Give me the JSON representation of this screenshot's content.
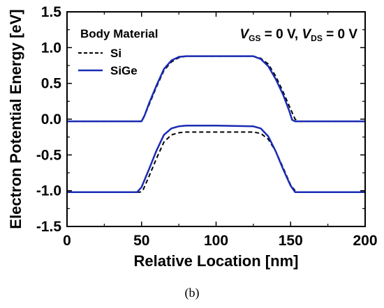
{
  "chart_data": {
    "type": "line",
    "xlabel": "Relative Location [nm]",
    "ylabel": "Electron Potential Energy [eV]",
    "xlim": [
      0,
      200
    ],
    "ylim": [
      -1.5,
      1.5
    ],
    "xticks": [
      "0",
      "50",
      "100",
      "150",
      "200"
    ],
    "yticks": [
      "-1.5",
      "-1.0",
      "-0.5",
      "0.0",
      "0.5",
      "1.0",
      "1.5"
    ],
    "grid": false,
    "legend": {
      "title": "Body Material",
      "placement": "top-left",
      "entries": [
        "Si",
        "SiGe"
      ]
    },
    "annotation": {
      "v1": "V",
      "s1": "GS",
      "mid": " = 0 V, ",
      "v2": "V",
      "s2": "DS",
      "end": " = 0 V"
    },
    "series": [
      {
        "name": "Si",
        "color": "#000000",
        "dash": "dashed",
        "curves": [
          [
            [
              0,
              -0.03
            ],
            [
              49,
              -0.03
            ],
            [
              51,
              0.0
            ],
            [
              55,
              0.2
            ],
            [
              60,
              0.45
            ],
            [
              65,
              0.68
            ],
            [
              70,
              0.8
            ],
            [
              75,
              0.86
            ],
            [
              80,
              0.88
            ],
            [
              100,
              0.88
            ],
            [
              125,
              0.88
            ],
            [
              130,
              0.85
            ],
            [
              135,
              0.77
            ],
            [
              140,
              0.6
            ],
            [
              145,
              0.38
            ],
            [
              150,
              0.14
            ],
            [
              153,
              0.0
            ],
            [
              155,
              -0.03
            ],
            [
              200,
              -0.03
            ]
          ],
          [
            [
              0,
              -1.02
            ],
            [
              49,
              -1.02
            ],
            [
              51,
              -0.99
            ],
            [
              55,
              -0.8
            ],
            [
              60,
              -0.55
            ],
            [
              65,
              -0.32
            ],
            [
              70,
              -0.22
            ],
            [
              75,
              -0.19
            ],
            [
              80,
              -0.18
            ],
            [
              100,
              -0.18
            ],
            [
              125,
              -0.18
            ],
            [
              130,
              -0.2
            ],
            [
              135,
              -0.28
            ],
            [
              140,
              -0.45
            ],
            [
              145,
              -0.68
            ],
            [
              150,
              -0.92
            ],
            [
              153,
              -1.0
            ],
            [
              155,
              -1.02
            ],
            [
              200,
              -1.02
            ]
          ]
        ]
      },
      {
        "name": "SiGe",
        "color": "#1a2bb4",
        "dash": "solid",
        "curves": [
          [
            [
              0,
              -0.03
            ],
            [
              50,
              -0.03
            ],
            [
              52,
              0.05
            ],
            [
              55,
              0.22
            ],
            [
              60,
              0.47
            ],
            [
              65,
              0.7
            ],
            [
              70,
              0.82
            ],
            [
              75,
              0.87
            ],
            [
              80,
              0.88
            ],
            [
              100,
              0.88
            ],
            [
              125,
              0.88
            ],
            [
              130,
              0.84
            ],
            [
              135,
              0.74
            ],
            [
              140,
              0.56
            ],
            [
              145,
              0.34
            ],
            [
              149,
              0.12
            ],
            [
              151,
              -0.01
            ],
            [
              153,
              -0.03
            ],
            [
              200,
              -0.03
            ]
          ],
          [
            [
              0,
              -1.02
            ],
            [
              47,
              -1.02
            ],
            [
              50,
              -0.95
            ],
            [
              55,
              -0.7
            ],
            [
              60,
              -0.44
            ],
            [
              65,
              -0.22
            ],
            [
              70,
              -0.13
            ],
            [
              75,
              -0.1
            ],
            [
              80,
              -0.09
            ],
            [
              100,
              -0.09
            ],
            [
              125,
              -0.1
            ],
            [
              130,
              -0.13
            ],
            [
              135,
              -0.24
            ],
            [
              140,
              -0.45
            ],
            [
              145,
              -0.7
            ],
            [
              150,
              -0.93
            ],
            [
              153,
              -1.02
            ],
            [
              200,
              -1.02
            ]
          ]
        ]
      }
    ]
  },
  "panel_label": "(b)"
}
